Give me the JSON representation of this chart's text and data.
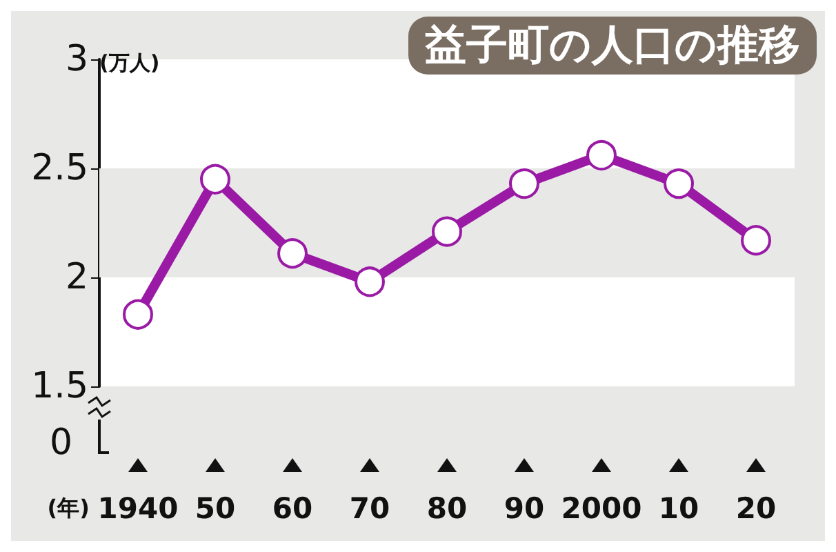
{
  "chart_data": {
    "type": "line",
    "title": "益子町の人口の推移",
    "ylabel": "(万人)",
    "xlabel": "(年)",
    "categories": [
      "1940",
      "50",
      "60",
      "70",
      "80",
      "90",
      "2000",
      "10",
      "20"
    ],
    "series": [
      {
        "color": "#9a1aa6",
        "values": [
          1.83,
          2.45,
          2.11,
          1.98,
          2.21,
          2.43,
          2.56,
          2.43,
          2.17
        ]
      }
    ],
    "ylim": [
      1.5,
      3
    ],
    "yticks": [
      1.5,
      2,
      2.5,
      3
    ],
    "marker": "circle",
    "bands": [
      {
        "axis": "y",
        "from": 2,
        "to": 2.5,
        "color": "#e8e8e6"
      }
    ],
    "annotations": [
      "0"
    ]
  }
}
